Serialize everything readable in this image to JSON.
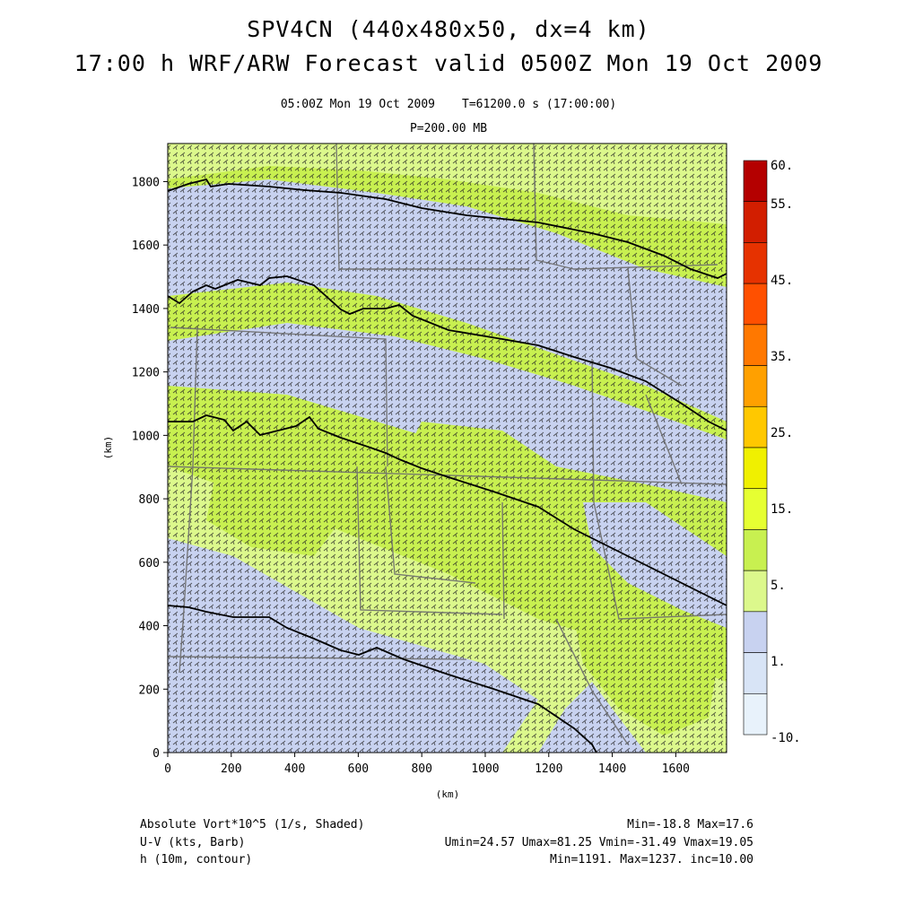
{
  "header": {
    "title_line1": "SPV4CN (440x480x50, dx=4 km)",
    "title_line2": "17:00 h WRF/ARW Forecast valid 0500Z Mon 19 Oct 2009",
    "valid_time": "05:00Z Mon 19 Oct 2009",
    "sim_time": "T=61200.0 s (17:00:00)",
    "level": "P=200.00 MB"
  },
  "axes": {
    "x_label": "(km)",
    "y_label": "(km)",
    "x_ticks": [
      "0",
      "200",
      "400",
      "600",
      "800",
      "1000",
      "1200",
      "1400",
      "1600"
    ],
    "y_ticks": [
      "0",
      "200",
      "400",
      "600",
      "800",
      "1000",
      "1200",
      "1400",
      "1600",
      "1800"
    ],
    "x_range_km": [
      0,
      1760
    ],
    "y_range_km": [
      0,
      1920
    ]
  },
  "colorbar": {
    "labels": [
      "60.",
      "55.",
      "45.",
      "35.",
      "25.",
      "15.",
      "5.",
      "1.",
      "-10."
    ],
    "colors": [
      "#b40000",
      "#d21e00",
      "#e63200",
      "#ff5000",
      "#ff7800",
      "#ffa000",
      "#ffc800",
      "#f0f000",
      "#e6ff32",
      "#c8f050",
      "#dcf88c",
      "#c8d2f0",
      "#d8e4f6",
      "#e8f2fb"
    ]
  },
  "field_colors": {
    "green": "#c8f050",
    "light_green": "#dcf88c",
    "lavender": "#c8d2f0"
  },
  "footer": {
    "field1_name": "Absolute Vort*10^5 (1/s, Shaded)",
    "field1_stats": "Min=-18.8 Max=17.6",
    "field2_name": "U-V (kts, Barb)",
    "field2_stats": "Umin=24.57 Umax=81.25 Vmin=-31.49 Vmax=19.05",
    "field3_name": "h (10m, contour)",
    "field3_stats": "Min=1191. Max=1237. inc=10.00"
  }
}
